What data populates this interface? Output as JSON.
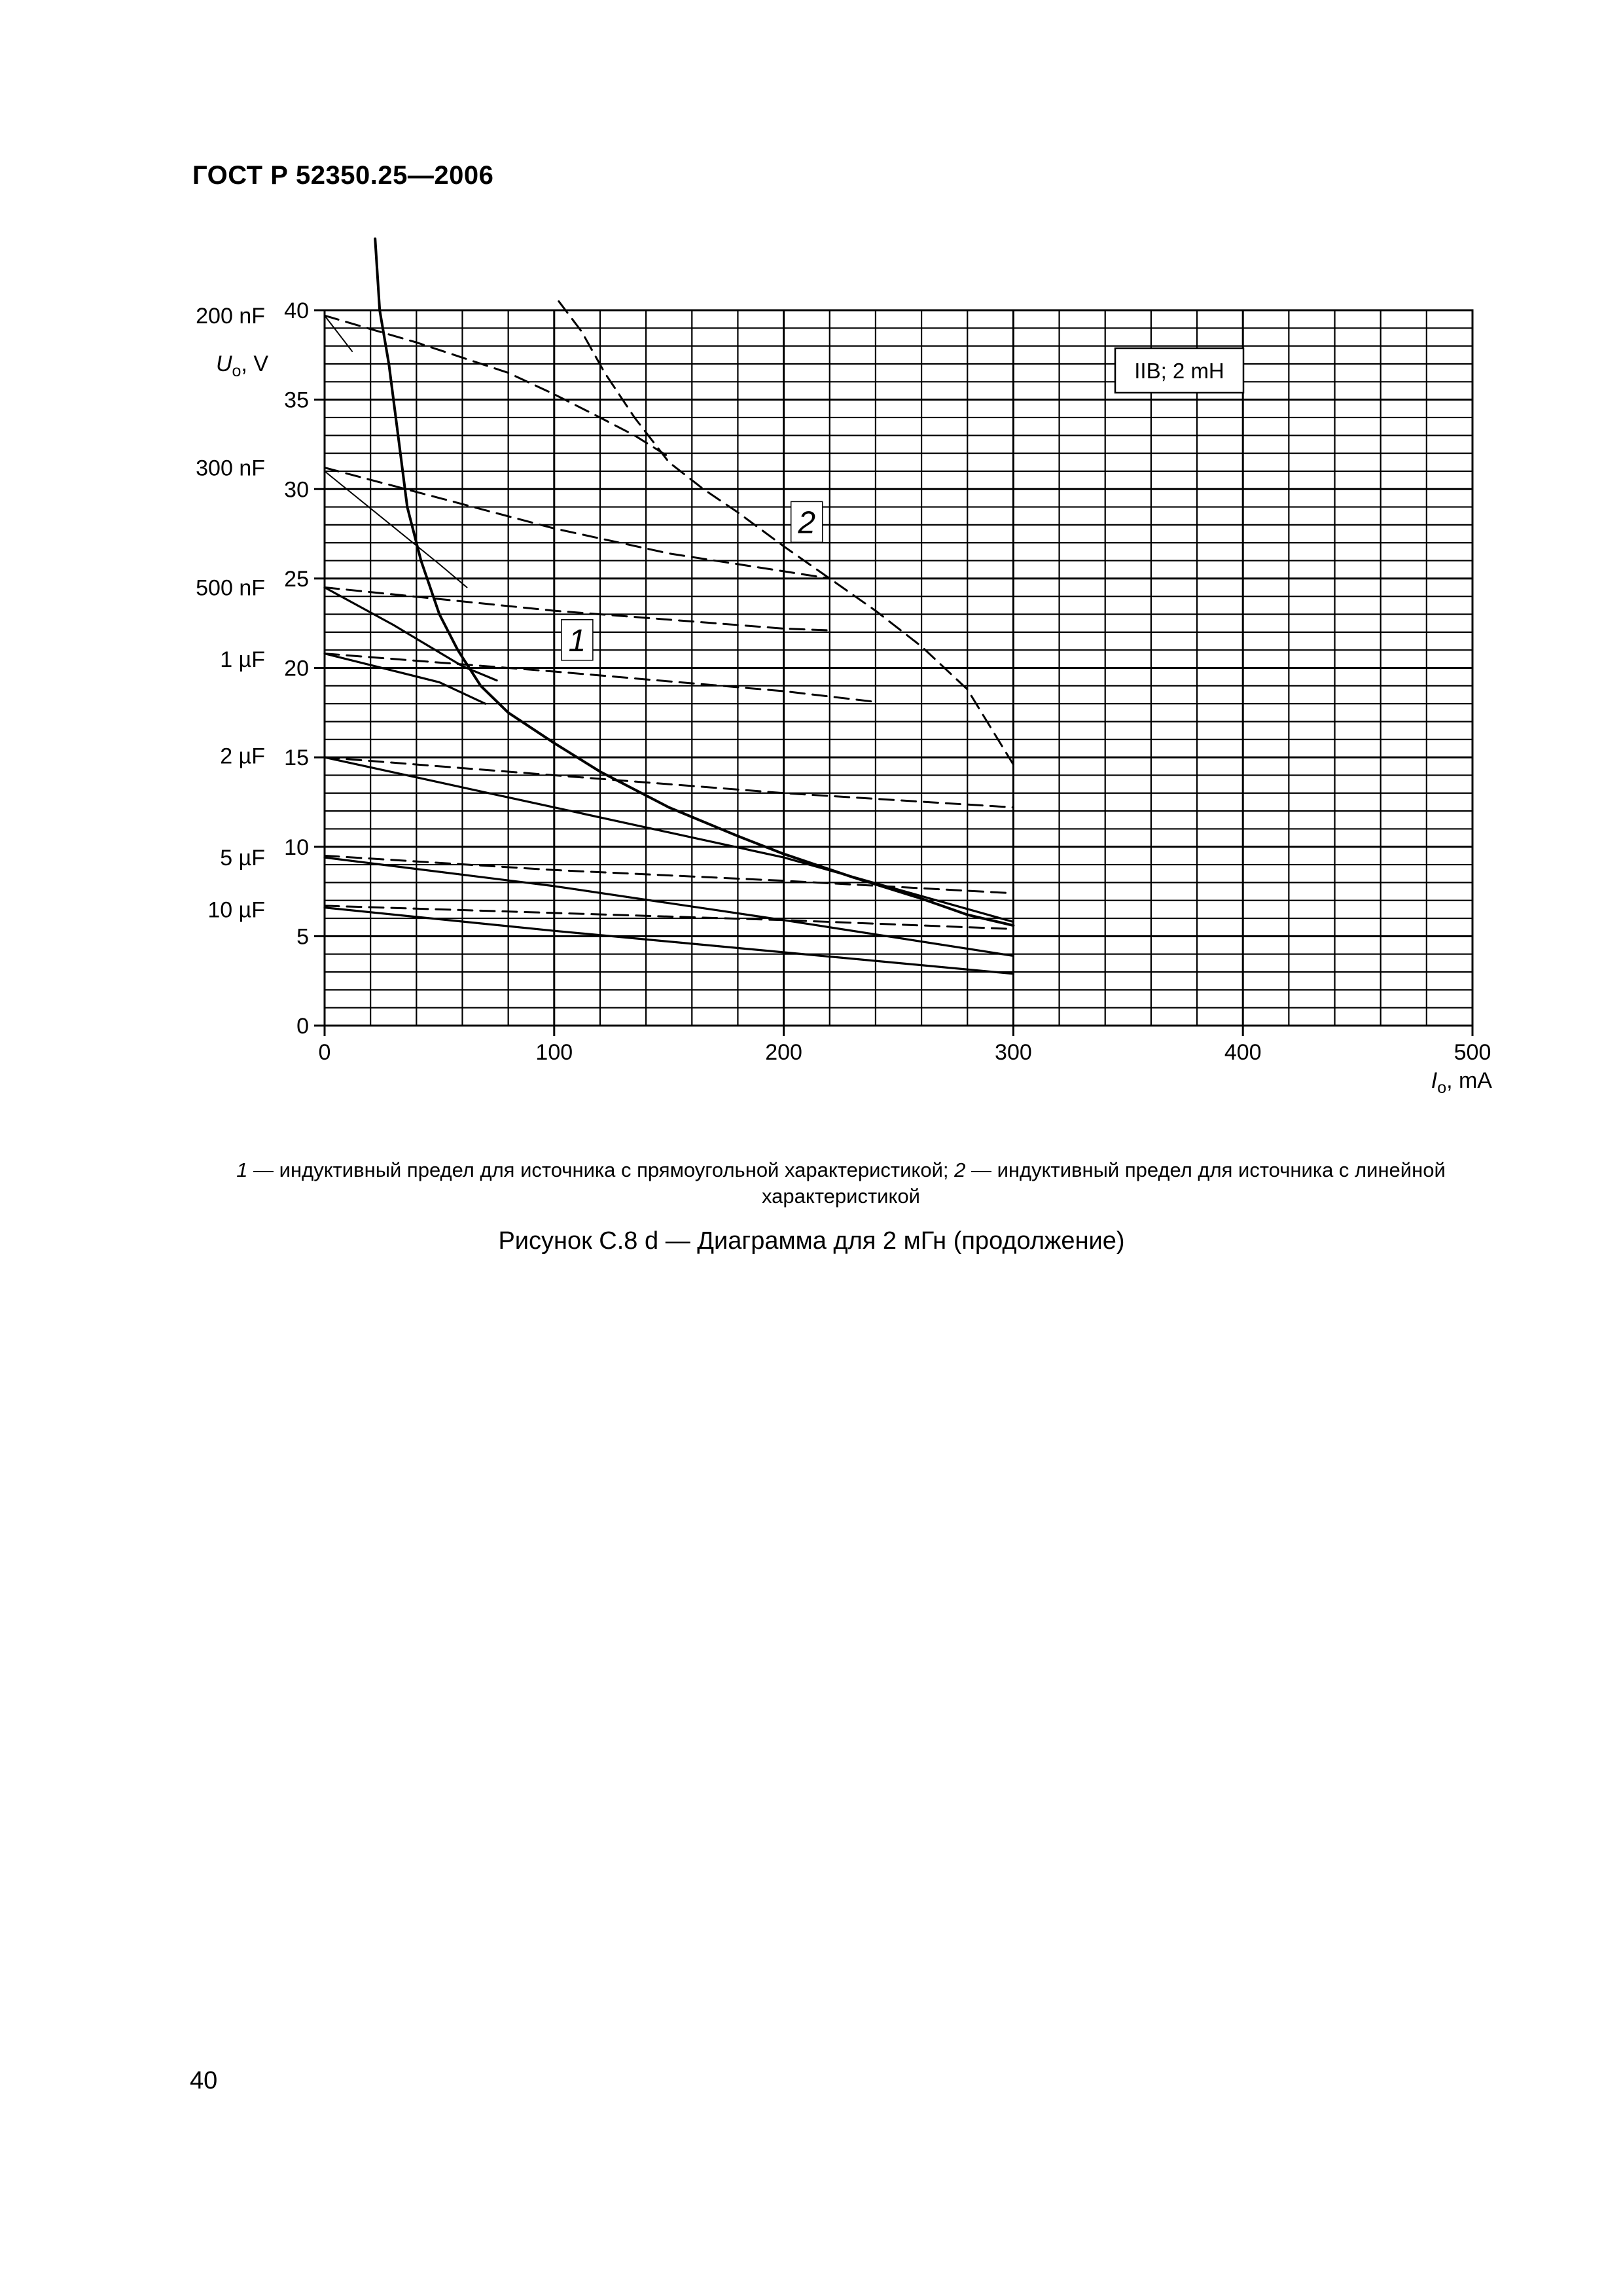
{
  "header": {
    "document_id": "ГОСТ Р 52350.25—2006"
  },
  "chart_data": {
    "type": "line",
    "annotation_box": "IIB; 2 mH",
    "xlabel": {
      "symbol": "I",
      "subscript": "o",
      "unit": ", mA"
    },
    "ylabel": {
      "symbol": "U",
      "subscript": "o",
      "unit": ", V"
    },
    "xlim": [
      0,
      500
    ],
    "ylim": [
      0,
      40
    ],
    "x_ticks": [
      0,
      100,
      200,
      300,
      400,
      500
    ],
    "y_ticks": [
      0,
      5,
      10,
      15,
      20,
      25,
      30,
      35,
      40
    ],
    "grid": true,
    "grid_x_step": 20,
    "grid_y_step": 1,
    "capacitance_labels": [
      {
        "text": "200 nF",
        "y": 39.7
      },
      {
        "text": "300 nF",
        "y": 31.2
      },
      {
        "text": "500 nF",
        "y": 24.5
      },
      {
        "text": "1 µF",
        "y": 20.5
      },
      {
        "text": "2 µF",
        "y": 15.1
      },
      {
        "text": "5 µF",
        "y": 9.4
      },
      {
        "text": "10 µF",
        "y": 6.5
      }
    ],
    "curve_labels": [
      {
        "text": "1",
        "x": 110,
        "y": 21.6
      },
      {
        "text": "2",
        "x": 210,
        "y": 28.2
      }
    ],
    "series": [
      {
        "style": "solid-bold",
        "points": [
          [
            22,
            44
          ],
          [
            24,
            40
          ],
          [
            28,
            37
          ],
          [
            32,
            33
          ],
          [
            36,
            29
          ],
          [
            42,
            26
          ],
          [
            50,
            23
          ],
          [
            58,
            21
          ],
          [
            68,
            19
          ],
          [
            80,
            17.5
          ],
          [
            100,
            15.8
          ],
          [
            120,
            14.2
          ],
          [
            150,
            12.2
          ],
          [
            180,
            10.6
          ],
          [
            200,
            9.6
          ],
          [
            230,
            8.3
          ],
          [
            260,
            7.1
          ],
          [
            280,
            6.2
          ],
          [
            300,
            5.6
          ]
        ]
      },
      {
        "style": "dashed",
        "points": [
          [
            102,
            40.5
          ],
          [
            112,
            38.8
          ],
          [
            122,
            36.5
          ],
          [
            135,
            34
          ],
          [
            150,
            31.5
          ],
          [
            165,
            30
          ],
          [
            180,
            28.7
          ],
          [
            200,
            26.8
          ],
          [
            220,
            25
          ],
          [
            240,
            23.2
          ],
          [
            260,
            21.2
          ],
          [
            280,
            18.8
          ],
          [
            300,
            14.6
          ]
        ]
      },
      {
        "style": "dashed",
        "points": [
          [
            0,
            39.7
          ],
          [
            40,
            38.2
          ],
          [
            80,
            36.5
          ],
          [
            100,
            35.3
          ],
          [
            120,
            34.0
          ],
          [
            135,
            33.0
          ],
          [
            150,
            31.8
          ]
        ]
      },
      {
        "style": "solid-thin",
        "points": [
          [
            0,
            39.7
          ],
          [
            12,
            37.7
          ]
        ]
      },
      {
        "style": "dashed",
        "points": [
          [
            0,
            31.2
          ],
          [
            50,
            29.5
          ],
          [
            100,
            27.8
          ],
          [
            150,
            26.4
          ],
          [
            200,
            25.4
          ],
          [
            220,
            25.0
          ]
        ]
      },
      {
        "style": "solid-thin",
        "points": [
          [
            0,
            31.0
          ],
          [
            50,
            25.8
          ],
          [
            62,
            24.5
          ]
        ]
      },
      {
        "style": "dashed",
        "points": [
          [
            0,
            24.5
          ],
          [
            100,
            23.2
          ],
          [
            200,
            22.2
          ],
          [
            220,
            22.1
          ]
        ]
      },
      {
        "style": "solid",
        "points": [
          [
            0,
            24.5
          ],
          [
            30,
            22.4
          ],
          [
            60,
            20.1
          ],
          [
            75,
            19.3
          ]
        ]
      },
      {
        "style": "dashed",
        "points": [
          [
            0,
            20.8
          ],
          [
            100,
            19.8
          ],
          [
            200,
            18.7
          ],
          [
            240,
            18.1
          ]
        ]
      },
      {
        "style": "solid",
        "points": [
          [
            0,
            20.8
          ],
          [
            50,
            19.2
          ],
          [
            70,
            18.0
          ]
        ]
      },
      {
        "style": "dashed",
        "points": [
          [
            0,
            15.0
          ],
          [
            100,
            14.0
          ],
          [
            200,
            13.0
          ],
          [
            300,
            12.2
          ]
        ]
      },
      {
        "style": "solid",
        "points": [
          [
            0,
            15.0
          ],
          [
            100,
            12.2
          ],
          [
            200,
            9.4
          ],
          [
            300,
            5.8
          ]
        ]
      },
      {
        "style": "dashed",
        "points": [
          [
            0,
            9.5
          ],
          [
            100,
            8.7
          ],
          [
            200,
            8.1
          ],
          [
            300,
            7.4
          ]
        ]
      },
      {
        "style": "solid",
        "points": [
          [
            0,
            9.4
          ],
          [
            100,
            7.8
          ],
          [
            200,
            5.9
          ],
          [
            300,
            3.9
          ]
        ]
      },
      {
        "style": "dashed",
        "points": [
          [
            0,
            6.7
          ],
          [
            100,
            6.3
          ],
          [
            200,
            5.9
          ],
          [
            300,
            5.4
          ]
        ]
      },
      {
        "style": "solid",
        "points": [
          [
            0,
            6.6
          ],
          [
            100,
            5.3
          ],
          [
            200,
            4.1
          ],
          [
            300,
            2.9
          ]
        ]
      }
    ]
  },
  "notes": {
    "n1_id": "1",
    "n1_text": " — индуктивный предел для источника с прямоугольной характеристикой; ",
    "n2_id": "2",
    "n2_text": " — индуктивный предел для источника с линейной характеристикой"
  },
  "figure_caption": "Рисунок С.8 d — Диаграмма для 2 мГн (продолжение)",
  "page_number": "40"
}
